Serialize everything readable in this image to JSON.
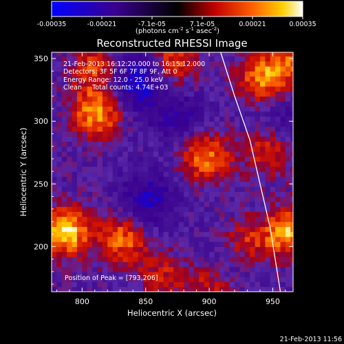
{
  "chart_data": {
    "type": "heatmap",
    "title": "Reconstructed RHESSI Image",
    "xlabel": "Heliocentric X (arcsec)",
    "ylabel": "Heliocentric Y (arcsec)",
    "xlim": [
      776,
      966
    ],
    "ylim": [
      164,
      355
    ],
    "x_ticks": [
      800,
      850,
      900,
      950
    ],
    "y_ticks": [
      200,
      250,
      300,
      350
    ],
    "colorbar": {
      "ticks": [
        "-0.00035",
        "-0.00021",
        "-7.1e-05",
        "7.1e-05",
        "0.00021",
        "0.00035"
      ],
      "unit_label": "(photons cm",
      "unit_exp1": "-2",
      "unit_mid": " s",
      "unit_exp2": "-1",
      "unit_mid2": " asec",
      "unit_exp3": "-2",
      "unit_end": ")",
      "range": [
        -0.00035,
        0.00035
      ]
    },
    "annotations": [
      "21-Feb-2013 16:12:20.000 to 16:15:12.000",
      "Detectors: 3F 5F 6F 7F 8F 9F, Att 0",
      "Energy Range: 12.0 - 25.0 keV",
      "Clean     Total counts: 4.74E+03"
    ],
    "peak_label": "Position of Peak = [793,206]",
    "peak_position": [
      793,
      206
    ],
    "hot_regions": [
      {
        "x": 785,
        "y": 210,
        "value": 0.00035
      },
      {
        "x": 810,
        "y": 305,
        "value": 0.0003
      },
      {
        "x": 830,
        "y": 205,
        "value": 0.00025
      },
      {
        "x": 895,
        "y": 270,
        "value": 0.00028
      },
      {
        "x": 925,
        "y": 200,
        "value": 0.0002
      },
      {
        "x": 960,
        "y": 210,
        "value": 0.0003
      },
      {
        "x": 940,
        "y": 330,
        "value": 0.00025
      },
      {
        "x": 870,
        "y": 345,
        "value": 0.00022
      },
      {
        "x": 810,
        "y": 340,
        "value": 0.00022
      },
      {
        "x": 900,
        "y": 170,
        "value": 0.0002
      },
      {
        "x": 860,
        "y": 175,
        "value": 0.00015
      },
      {
        "x": 945,
        "y": 275,
        "value": 0.0002
      },
      {
        "x": 960,
        "y": 345,
        "value": 0.0002
      }
    ],
    "cold_regions": [
      {
        "x": 840,
        "y": 330,
        "value": -0.00028
      },
      {
        "x": 850,
        "y": 235,
        "value": -0.0002
      },
      {
        "x": 875,
        "y": 300,
        "value": -0.00015
      },
      {
        "x": 910,
        "y": 185,
        "value": -0.00015
      },
      {
        "x": 955,
        "y": 300,
        "value": -0.00012
      }
    ],
    "limb_curve": [
      [
        909,
        355
      ],
      [
        920,
        320
      ],
      [
        932,
        285
      ],
      [
        940,
        250
      ],
      [
        948,
        215
      ],
      [
        956,
        164
      ]
    ]
  },
  "footer": {
    "timestamp": "21-Feb-2013 11:56"
  },
  "colors": {
    "limb": "#ffffff",
    "axes": "#ffffff",
    "background": "#000000"
  }
}
